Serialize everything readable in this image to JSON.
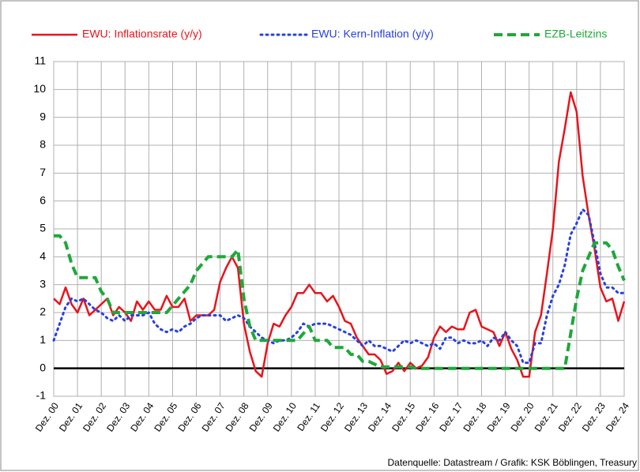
{
  "chart_data": {
    "type": "line",
    "note_source": "Datenquelle:  Datastream / Grafik: KSK Böblingen,  Treasury",
    "categories": [
      "Dez. 00",
      null,
      null,
      null,
      "Dez. 01",
      null,
      null,
      null,
      "Dez. 02",
      null,
      null,
      null,
      "Dez. 03",
      null,
      null,
      null,
      "Dez. 04",
      null,
      null,
      null,
      "Dez. 05",
      null,
      null,
      null,
      "Dez. 06",
      null,
      null,
      null,
      "Dez. 07",
      null,
      null,
      null,
      "Dez. 08",
      null,
      null,
      null,
      "Dez. 09",
      null,
      null,
      null,
      "Dez. 10",
      null,
      null,
      null,
      "Dez. 11",
      null,
      null,
      null,
      "Dez. 12",
      null,
      null,
      null,
      "Dez. 13",
      null,
      null,
      null,
      "Dez. 14",
      null,
      null,
      null,
      "Dez. 15",
      null,
      null,
      null,
      "Dez. 16",
      null,
      null,
      null,
      "Dez. 17",
      null,
      null,
      null,
      "Dez. 18",
      null,
      null,
      null,
      "Dez. 19",
      null,
      null,
      null,
      "Dez. 20",
      null,
      null,
      null,
      "Dez. 21",
      null,
      null,
      null,
      "Dez. 22",
      null,
      null,
      null,
      "Dez. 23",
      null,
      null,
      null,
      "Dez. 24"
    ],
    "series": [
      {
        "name": "EWU: Inflationsrate (y/y)",
        "color": "#e8141c",
        "style": "solid",
        "values": [
          2.5,
          2.3,
          2.9,
          2.3,
          2.0,
          2.5,
          1.9,
          2.1,
          2.3,
          2.5,
          1.9,
          2.2,
          2.0,
          1.7,
          2.4,
          2.1,
          2.4,
          2.1,
          2.1,
          2.6,
          2.2,
          2.2,
          2.5,
          1.7,
          1.9,
          1.9,
          1.9,
          2.1,
          3.1,
          3.6,
          4.0,
          3.6,
          1.6,
          0.6,
          -0.1,
          -0.3,
          0.9,
          1.6,
          1.5,
          1.9,
          2.2,
          2.7,
          2.7,
          3.0,
          2.7,
          2.7,
          2.4,
          2.6,
          2.2,
          1.7,
          1.6,
          1.1,
          0.8,
          0.5,
          0.5,
          0.3,
          -0.2,
          -0.1,
          0.2,
          -0.1,
          0.2,
          0.0,
          0.1,
          0.4,
          1.1,
          1.5,
          1.3,
          1.5,
          1.4,
          1.4,
          2.0,
          2.1,
          1.5,
          1.4,
          1.3,
          0.8,
          1.3,
          0.7,
          0.3,
          -0.3,
          -0.3,
          1.3,
          1.9,
          3.4,
          5.0,
          7.4,
          8.6,
          9.9,
          9.2,
          6.9,
          5.5,
          4.3,
          2.9,
          2.4,
          2.5,
          1.7,
          2.4
        ]
      },
      {
        "name": "EWU: Kern-Inflation (y/y)",
        "color": "#2840e0",
        "style": "dotted",
        "values": [
          1.0,
          1.6,
          2.2,
          2.5,
          2.4,
          2.5,
          2.3,
          2.1,
          2.0,
          1.8,
          1.7,
          1.9,
          1.7,
          1.9,
          1.9,
          1.9,
          2.0,
          1.6,
          1.4,
          1.3,
          1.4,
          1.3,
          1.5,
          1.6,
          1.8,
          1.9,
          1.9,
          1.9,
          1.9,
          1.7,
          1.8,
          1.9,
          1.8,
          1.5,
          1.3,
          1.1,
          1.0,
          0.9,
          1.0,
          1.0,
          1.1,
          1.3,
          1.6,
          1.5,
          1.6,
          1.6,
          1.6,
          1.5,
          1.4,
          1.3,
          1.2,
          1.0,
          0.8,
          1.0,
          0.8,
          0.8,
          0.7,
          0.6,
          0.8,
          1.0,
          0.9,
          1.0,
          0.9,
          0.8,
          0.9,
          0.7,
          1.1,
          1.1,
          0.9,
          1.0,
          0.9,
          0.9,
          1.0,
          0.8,
          1.1,
          1.0,
          1.3,
          1.0,
          0.8,
          0.2,
          0.2,
          0.9,
          0.9,
          1.9,
          2.6,
          3.0,
          3.7,
          4.8,
          5.2,
          5.7,
          5.5,
          4.5,
          3.4,
          2.9,
          2.9,
          2.7,
          2.7
        ]
      },
      {
        "name": "EZB-Leitzins",
        "color": "#1fa83a",
        "style": "dashed",
        "values": [
          4.75,
          4.75,
          4.5,
          3.75,
          3.25,
          3.25,
          3.25,
          3.25,
          2.75,
          2.5,
          2.0,
          2.0,
          2.0,
          2.0,
          2.0,
          2.0,
          2.0,
          2.0,
          2.0,
          2.0,
          2.25,
          2.5,
          2.75,
          3.0,
          3.5,
          3.75,
          4.0,
          4.0,
          4.0,
          4.0,
          4.0,
          4.25,
          2.5,
          1.5,
          1.0,
          1.0,
          1.0,
          1.0,
          1.0,
          1.0,
          1.0,
          1.0,
          1.25,
          1.5,
          1.0,
          1.0,
          1.0,
          0.75,
          0.75,
          0.75,
          0.5,
          0.5,
          0.25,
          0.25,
          0.15,
          0.05,
          0.05,
          0.05,
          0.05,
          0.05,
          0.05,
          0,
          0,
          0,
          0,
          0,
          0,
          0,
          0,
          0,
          0,
          0,
          0,
          0,
          0,
          0,
          0,
          0,
          0,
          0,
          0,
          0,
          0,
          0,
          0,
          0,
          0,
          1.25,
          2.5,
          3.5,
          4.0,
          4.5,
          4.5,
          4.5,
          4.25,
          3.65,
          3.15
        ]
      }
    ],
    "ylim": [
      -1,
      11
    ],
    "yticks": [
      -1,
      0,
      1,
      2,
      3,
      4,
      5,
      6,
      7,
      8,
      9,
      10,
      11
    ],
    "grid": true,
    "zero_line": true,
    "legend": "top"
  }
}
